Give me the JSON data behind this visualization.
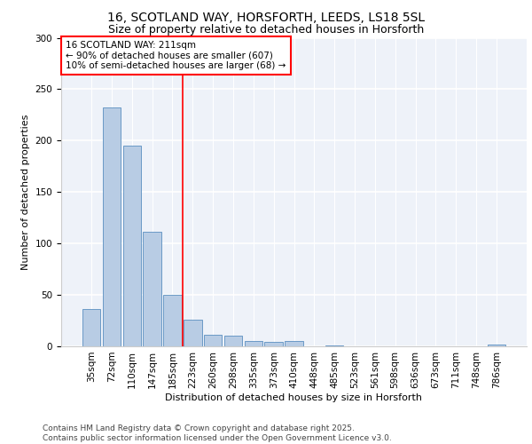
{
  "title_line1": "16, SCOTLAND WAY, HORSFORTH, LEEDS, LS18 5SL",
  "title_line2": "Size of property relative to detached houses in Horsforth",
  "xlabel": "Distribution of detached houses by size in Horsforth",
  "ylabel": "Number of detached properties",
  "categories": [
    "35sqm",
    "72sqm",
    "110sqm",
    "147sqm",
    "185sqm",
    "223sqm",
    "260sqm",
    "298sqm",
    "335sqm",
    "373sqm",
    "410sqm",
    "448sqm",
    "485sqm",
    "523sqm",
    "561sqm",
    "598sqm",
    "636sqm",
    "673sqm",
    "711sqm",
    "748sqm",
    "786sqm"
  ],
  "values": [
    36,
    232,
    195,
    111,
    50,
    26,
    11,
    10,
    5,
    4,
    5,
    0,
    1,
    0,
    0,
    0,
    0,
    0,
    0,
    0,
    2
  ],
  "bar_color": "#b8cce4",
  "bar_edge_color": "#5a8fc0",
  "vline_x_index": 4.5,
  "vline_color": "red",
  "annotation_text": "16 SCOTLAND WAY: 211sqm\n← 90% of detached houses are smaller (607)\n10% of semi-detached houses are larger (68) →",
  "annotation_box_color": "white",
  "annotation_box_edge_color": "red",
  "ylim": [
    0,
    300
  ],
  "yticks": [
    0,
    50,
    100,
    150,
    200,
    250,
    300
  ],
  "background_color": "#eef2f9",
  "footer_line1": "Contains HM Land Registry data © Crown copyright and database right 2025.",
  "footer_line2": "Contains public sector information licensed under the Open Government Licence v3.0.",
  "title_fontsize": 10,
  "subtitle_fontsize": 9,
  "axis_label_fontsize": 8,
  "tick_fontsize": 7.5,
  "annotation_fontsize": 7.5,
  "footer_fontsize": 6.5
}
